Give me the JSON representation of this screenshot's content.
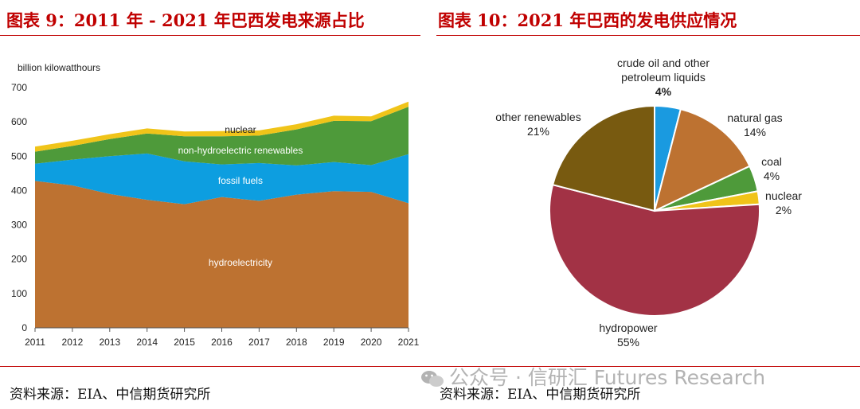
{
  "titles": {
    "left": "图表 9：2011 年 - 2021 年巴西发电来源占比",
    "right": "图表 10：2021 年巴西的发电供应情况"
  },
  "sources": {
    "left": "资料来源：EIA、中信期货研究所",
    "right": "资料来源：EIA、中信期货研究所"
  },
  "watermark": "公众号 · 信研汇 Futures Research",
  "chart_data": [
    {
      "type": "area",
      "stacked": true,
      "ylabel": "billion kilowatthours",
      "ylim": [
        0,
        700
      ],
      "yticks": [
        0,
        100,
        200,
        300,
        400,
        500,
        600,
        700
      ],
      "x": [
        2011,
        2012,
        2013,
        2014,
        2015,
        2016,
        2017,
        2018,
        2019,
        2020,
        2021
      ],
      "series": [
        {
          "name": "hydroelectricity",
          "color": "#bd7231",
          "values": [
            428,
            415,
            390,
            373,
            360,
            381,
            370,
            388,
            398,
            396,
            363
          ]
        },
        {
          "name": "fossil fuels",
          "color": "#0d9ee0",
          "values": [
            50,
            75,
            110,
            135,
            125,
            95,
            110,
            85,
            85,
            78,
            143
          ]
        },
        {
          "name": "non-hydroelectric renewables",
          "color": "#4e9a3a",
          "values": [
            35,
            40,
            50,
            58,
            73,
            82,
            80,
            105,
            120,
            128,
            138
          ]
        },
        {
          "name": "nuclear",
          "color": "#f0c419",
          "values": [
            15,
            15,
            14,
            15,
            14,
            15,
            15,
            15,
            15,
            14,
            15
          ]
        }
      ],
      "grid": false
    },
    {
      "type": "pie",
      "labels": [
        "crude oil and other petroleum liquids",
        "natural gas",
        "coal",
        "nuclear",
        "hydropower",
        "other renewables"
      ],
      "values": [
        4,
        14,
        4,
        2,
        55,
        21
      ],
      "value_labels": [
        "4%",
        "14%",
        "4%",
        "2%",
        "55%",
        "21%"
      ],
      "colors": [
        "#1a9ae0",
        "#bd7231",
        "#4e9a3a",
        "#f0c419",
        "#a23245",
        "#785a10"
      ]
    }
  ]
}
